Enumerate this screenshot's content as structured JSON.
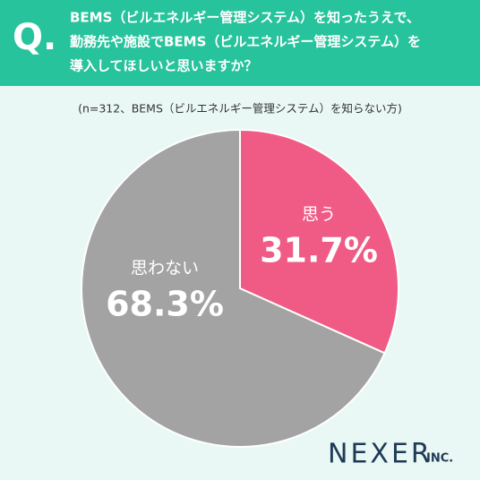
{
  "chart_data": {
    "type": "pie",
    "q_label": "Q.",
    "title": [
      "BEMS（ビルエネルギー管理システム）を知ったうえで、",
      "勤務先や施設でBEMS（ビルエネルギー管理システム）を",
      "導入してほしいと思いますか？"
    ],
    "subtitle": "(n=312、BEMS（ビルエネルギー管理システム）を知らない方)",
    "categories": [
      "思う",
      "思わない"
    ],
    "values": [
      31.7,
      68.3
    ],
    "value_labels": [
      "31.7%",
      "68.3%"
    ],
    "colors": [
      "#f05b85",
      "#a3a3a3"
    ],
    "logo": {
      "name": "NEXER",
      "suffix": "INC."
    }
  }
}
